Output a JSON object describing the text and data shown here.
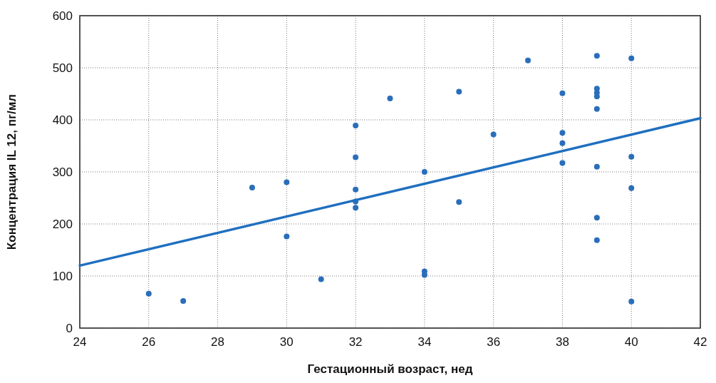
{
  "chart_data": {
    "type": "scatter",
    "xlabel": "Гестационный возраст, нед",
    "ylabel": "Концентрация IL 12, пг/мл",
    "xlim": [
      24,
      42
    ],
    "xticks": [
      24,
      26,
      28,
      30,
      32,
      34,
      36,
      38,
      40,
      42
    ],
    "ylim": [
      0,
      600
    ],
    "yticks": [
      0,
      100,
      200,
      300,
      400,
      500,
      600
    ],
    "grid": true,
    "series": [
      {
        "marker": "circle",
        "color": "#2a6ebb",
        "x": [
          26,
          27,
          29,
          30,
          30,
          31,
          32,
          32,
          32,
          32,
          32,
          33,
          34,
          34,
          34,
          35,
          35,
          36,
          37,
          38,
          38,
          38,
          38,
          39,
          39,
          39,
          39,
          39,
          39,
          39,
          39,
          40,
          40,
          40,
          40
        ],
        "values": [
          66,
          52,
          270,
          280,
          176,
          94,
          389,
          328,
          266,
          243,
          231,
          441,
          300,
          109,
          102,
          454,
          242,
          372,
          514,
          451,
          375,
          355,
          317,
          523,
          460,
          452,
          445,
          421,
          310,
          212,
          169,
          518,
          329,
          269,
          51
        ]
      },
      {
        "type": "line",
        "color": "#1f6fc0",
        "marker": "none",
        "x": [
          24,
          42
        ],
        "values": [
          120,
          403
        ]
      }
    ]
  }
}
